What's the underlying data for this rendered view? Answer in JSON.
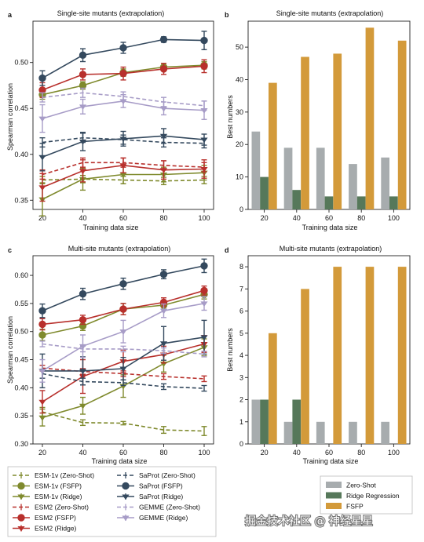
{
  "watermark": "掘金技术社区 @ 神经星星",
  "colors": {
    "esm1v": "#7f8a2d",
    "esm2": "#b8302c",
    "saprot": "#34495e",
    "gemme": "#a79cc7",
    "zero_shot_bar": "#a7acae",
    "ridge_bar": "#56785a",
    "fsfp_bar": "#d39a3a"
  },
  "legend_lines": [
    {
      "label": "ESM-1v (Zero-Shot)",
      "series": "esm1v",
      "style": "dashed"
    },
    {
      "label": "ESM-1v (FSFP)",
      "series": "esm1v",
      "style": "solid-circle"
    },
    {
      "label": "ESM-1v (Ridge)",
      "series": "esm1v",
      "style": "solid-triangle"
    },
    {
      "label": "ESM2 (Zero-Shot)",
      "series": "esm2",
      "style": "dashed"
    },
    {
      "label": "ESM2 (FSFP)",
      "series": "esm2",
      "style": "solid-circle"
    },
    {
      "label": "ESM2 (Ridge)",
      "series": "esm2",
      "style": "solid-triangle"
    },
    {
      "label": "SaProt (Zero-Shot)",
      "series": "saprot",
      "style": "dashed"
    },
    {
      "label": "SaProt (FSFP)",
      "series": "saprot",
      "style": "solid-circle"
    },
    {
      "label": "SaProt (Ridge)",
      "series": "saprot",
      "style": "solid-triangle"
    },
    {
      "label": "GEMME (Zero-Shot)",
      "series": "gemme",
      "style": "dashed"
    },
    {
      "label": "GEMME (Ridge)",
      "series": "gemme",
      "style": "solid-triangle"
    }
  ],
  "legend_bars": [
    {
      "label": "Zero-Shot",
      "color": "zero_shot_bar"
    },
    {
      "label": "Ridge Regression",
      "color": "ridge_bar"
    },
    {
      "label": "FSFP",
      "color": "fsfp_bar"
    }
  ],
  "chart_data": [
    {
      "panel": "a",
      "type": "line",
      "title": "Single-site mutants (extrapolation)",
      "xlabel": "Training data size",
      "ylabel": "Spearman correlation",
      "x": [
        20,
        40,
        60,
        80,
        100
      ],
      "ylim": [
        0.34,
        0.545
      ],
      "yticks": [
        0.35,
        0.4,
        0.45,
        0.5
      ],
      "ytick_labels": [
        "0.35",
        "0.40",
        "0.45",
        "0.50"
      ],
      "series": [
        {
          "name": "ESM-1v (Zero-Shot)",
          "key": "esm1v",
          "style": "dashed",
          "values": [
            0.372,
            0.373,
            0.372,
            0.371,
            0.372
          ],
          "err": [
            0.004,
            0.004,
            0.004,
            0.004,
            0.004
          ]
        },
        {
          "name": "ESM-1v (FSFP)",
          "key": "esm1v",
          "style": "solid-circle",
          "values": [
            0.465,
            0.475,
            0.489,
            0.495,
            0.497
          ],
          "err": [
            0.005,
            0.004,
            0.004,
            0.004,
            0.004
          ]
        },
        {
          "name": "ESM-1v (Ridge)",
          "key": "esm1v",
          "style": "solid-triangle",
          "values": [
            0.351,
            0.373,
            0.378,
            0.378,
            0.38
          ],
          "err": [
            0.018,
            0.012,
            0.01,
            0.008,
            0.008
          ]
        },
        {
          "name": "ESM2 (Zero-Shot)",
          "key": "esm2",
          "style": "dashed",
          "values": [
            0.378,
            0.391,
            0.391,
            0.388,
            0.386
          ],
          "err": [
            0.005,
            0.005,
            0.005,
            0.005,
            0.005
          ]
        },
        {
          "name": "ESM2 (FSFP)",
          "key": "esm2",
          "style": "solid-circle",
          "values": [
            0.47,
            0.487,
            0.488,
            0.493,
            0.496
          ],
          "err": [
            0.008,
            0.006,
            0.007,
            0.006,
            0.007
          ]
        },
        {
          "name": "ESM2 (Ridge)",
          "key": "esm2",
          "style": "solid-triangle",
          "values": [
            0.364,
            0.382,
            0.388,
            0.383,
            0.384
          ],
          "err": [
            0.015,
            0.012,
            0.008,
            0.01,
            0.01
          ]
        },
        {
          "name": "SaProt (Zero-Shot)",
          "key": "saprot",
          "style": "dashed",
          "values": [
            0.413,
            0.418,
            0.416,
            0.413,
            0.412
          ],
          "err": [
            0.005,
            0.005,
            0.005,
            0.005,
            0.005
          ]
        },
        {
          "name": "SaProt (FSFP)",
          "key": "saprot",
          "style": "solid-circle",
          "values": [
            0.483,
            0.508,
            0.516,
            0.525,
            0.524
          ],
          "err": [
            0.008,
            0.007,
            0.006,
            0.003,
            0.01
          ]
        },
        {
          "name": "SaProt (Ridge)",
          "key": "saprot",
          "style": "solid-triangle",
          "values": [
            0.397,
            0.414,
            0.417,
            0.42,
            0.416
          ],
          "err": [
            0.015,
            0.01,
            0.008,
            0.008,
            0.006
          ]
        },
        {
          "name": "GEMME (Zero-Shot)",
          "key": "gemme",
          "style": "dashed",
          "values": [
            0.462,
            0.467,
            0.463,
            0.457,
            0.453
          ],
          "err": [
            0.005,
            0.005,
            0.005,
            0.005,
            0.005
          ]
        },
        {
          "name": "GEMME (Ridge)",
          "key": "gemme",
          "style": "solid-triangle",
          "values": [
            0.439,
            0.452,
            0.458,
            0.45,
            0.448
          ],
          "err": [
            0.015,
            0.008,
            0.007,
            0.007,
            0.01
          ]
        }
      ]
    },
    {
      "panel": "b",
      "type": "bar",
      "title": "Single-site mutants (extrapolation)",
      "xlabel": "Training data size",
      "ylabel": "Best numbers",
      "categories": [
        "20",
        "40",
        "60",
        "80",
        "100"
      ],
      "ylim": [
        0,
        58
      ],
      "yticks": [
        0,
        10,
        20,
        30,
        40,
        50
      ],
      "series": [
        {
          "name": "Zero-Shot",
          "key": "zero_shot_bar",
          "values": [
            24,
            19,
            19,
            14,
            16
          ]
        },
        {
          "name": "Ridge Regression",
          "key": "ridge_bar",
          "values": [
            10,
            6,
            4,
            4,
            4
          ]
        },
        {
          "name": "FSFP",
          "key": "fsfp_bar",
          "values": [
            39,
            47,
            48,
            56,
            52
          ]
        }
      ]
    },
    {
      "panel": "c",
      "type": "line",
      "title": "Multi-site mutants (extrapolation)",
      "xlabel": "Training data size",
      "ylabel": "Spearman correlation",
      "x": [
        20,
        40,
        60,
        80,
        100
      ],
      "ylim": [
        0.3,
        0.635
      ],
      "yticks": [
        0.3,
        0.35,
        0.4,
        0.45,
        0.5,
        0.55,
        0.6
      ],
      "ytick_labels": [
        "0.30",
        "0.35",
        "0.40",
        "0.45",
        "0.50",
        "0.55",
        "0.60"
      ],
      "series": [
        {
          "name": "ESM-1v (Zero-Shot)",
          "key": "esm1v",
          "style": "dashed",
          "values": [
            0.357,
            0.338,
            0.337,
            0.325,
            0.323
          ],
          "err": [
            0.008,
            0.005,
            0.003,
            0.006,
            0.008
          ]
        },
        {
          "name": "ESM-1v (FSFP)",
          "key": "esm1v",
          "style": "solid-circle",
          "values": [
            0.494,
            0.51,
            0.54,
            0.547,
            0.566
          ],
          "err": [
            0.01,
            0.008,
            0.01,
            0.007,
            0.008
          ]
        },
        {
          "name": "ESM-1v (Ridge)",
          "key": "esm1v",
          "style": "solid-triangle",
          "values": [
            0.347,
            0.368,
            0.403,
            0.443,
            0.472
          ],
          "err": [
            0.015,
            0.015,
            0.02,
            0.015,
            0.015
          ]
        },
        {
          "name": "ESM2 (Zero-Shot)",
          "key": "esm2",
          "style": "dashed",
          "values": [
            0.435,
            0.429,
            0.425,
            0.42,
            0.416
          ],
          "err": [
            0.005,
            0.005,
            0.005,
            0.005,
            0.005
          ]
        },
        {
          "name": "ESM2 (FSFP)",
          "key": "esm2",
          "style": "solid-circle",
          "values": [
            0.513,
            0.521,
            0.54,
            0.552,
            0.573
          ],
          "err": [
            0.01,
            0.008,
            0.01,
            0.008,
            0.008
          ]
        },
        {
          "name": "ESM2 (Ridge)",
          "key": "esm2",
          "style": "solid-triangle",
          "values": [
            0.375,
            0.42,
            0.447,
            0.459,
            0.478
          ],
          "err": [
            0.02,
            0.03,
            0.02,
            0.015,
            0.015
          ]
        },
        {
          "name": "SaProt (Zero-Shot)",
          "key": "saprot",
          "style": "dashed",
          "values": [
            0.425,
            0.411,
            0.409,
            0.402,
            0.399
          ],
          "err": [
            0.008,
            0.006,
            0.005,
            0.005,
            0.005
          ]
        },
        {
          "name": "SaProt (FSFP)",
          "key": "saprot",
          "style": "solid-circle",
          "values": [
            0.537,
            0.567,
            0.585,
            0.602,
            0.617
          ],
          "err": [
            0.012,
            0.01,
            0.01,
            0.008,
            0.012
          ]
        },
        {
          "name": "SaProt (Ridge)",
          "key": "saprot",
          "style": "solid-triangle",
          "values": [
            0.43,
            0.43,
            0.434,
            0.479,
            0.49
          ],
          "err": [
            0.03,
            0.025,
            0.02,
            0.03,
            0.03
          ]
        },
        {
          "name": "GEMME (Zero-Shot)",
          "key": "gemme",
          "style": "dashed",
          "values": [
            0.478,
            0.469,
            0.469,
            0.466,
            0.46
          ],
          "err": [
            0.005,
            0.005,
            0.005,
            0.005,
            0.005
          ]
        },
        {
          "name": "GEMME (Ridge)",
          "key": "gemme",
          "style": "solid-triangle",
          "values": [
            0.43,
            0.474,
            0.5,
            0.537,
            0.55
          ],
          "err": [
            0.02,
            0.02,
            0.02,
            0.012,
            0.012
          ]
        }
      ]
    },
    {
      "panel": "d",
      "type": "bar",
      "title": "Multi-site mutants (extrapolation)",
      "xlabel": "Training data size",
      "ylabel": "Best numbers",
      "categories": [
        "20",
        "40",
        "60",
        "80",
        "100"
      ],
      "ylim": [
        0,
        8.5
      ],
      "yticks": [
        0,
        1,
        2,
        3,
        4,
        5,
        6,
        7,
        8
      ],
      "series": [
        {
          "name": "Zero-Shot",
          "key": "zero_shot_bar",
          "values": [
            2,
            1,
            1,
            1,
            1
          ]
        },
        {
          "name": "Ridge Regression",
          "key": "ridge_bar",
          "values": [
            2,
            2,
            0,
            0,
            0
          ]
        },
        {
          "name": "FSFP",
          "key": "fsfp_bar",
          "values": [
            5,
            7,
            8,
            8,
            8
          ]
        }
      ]
    }
  ]
}
